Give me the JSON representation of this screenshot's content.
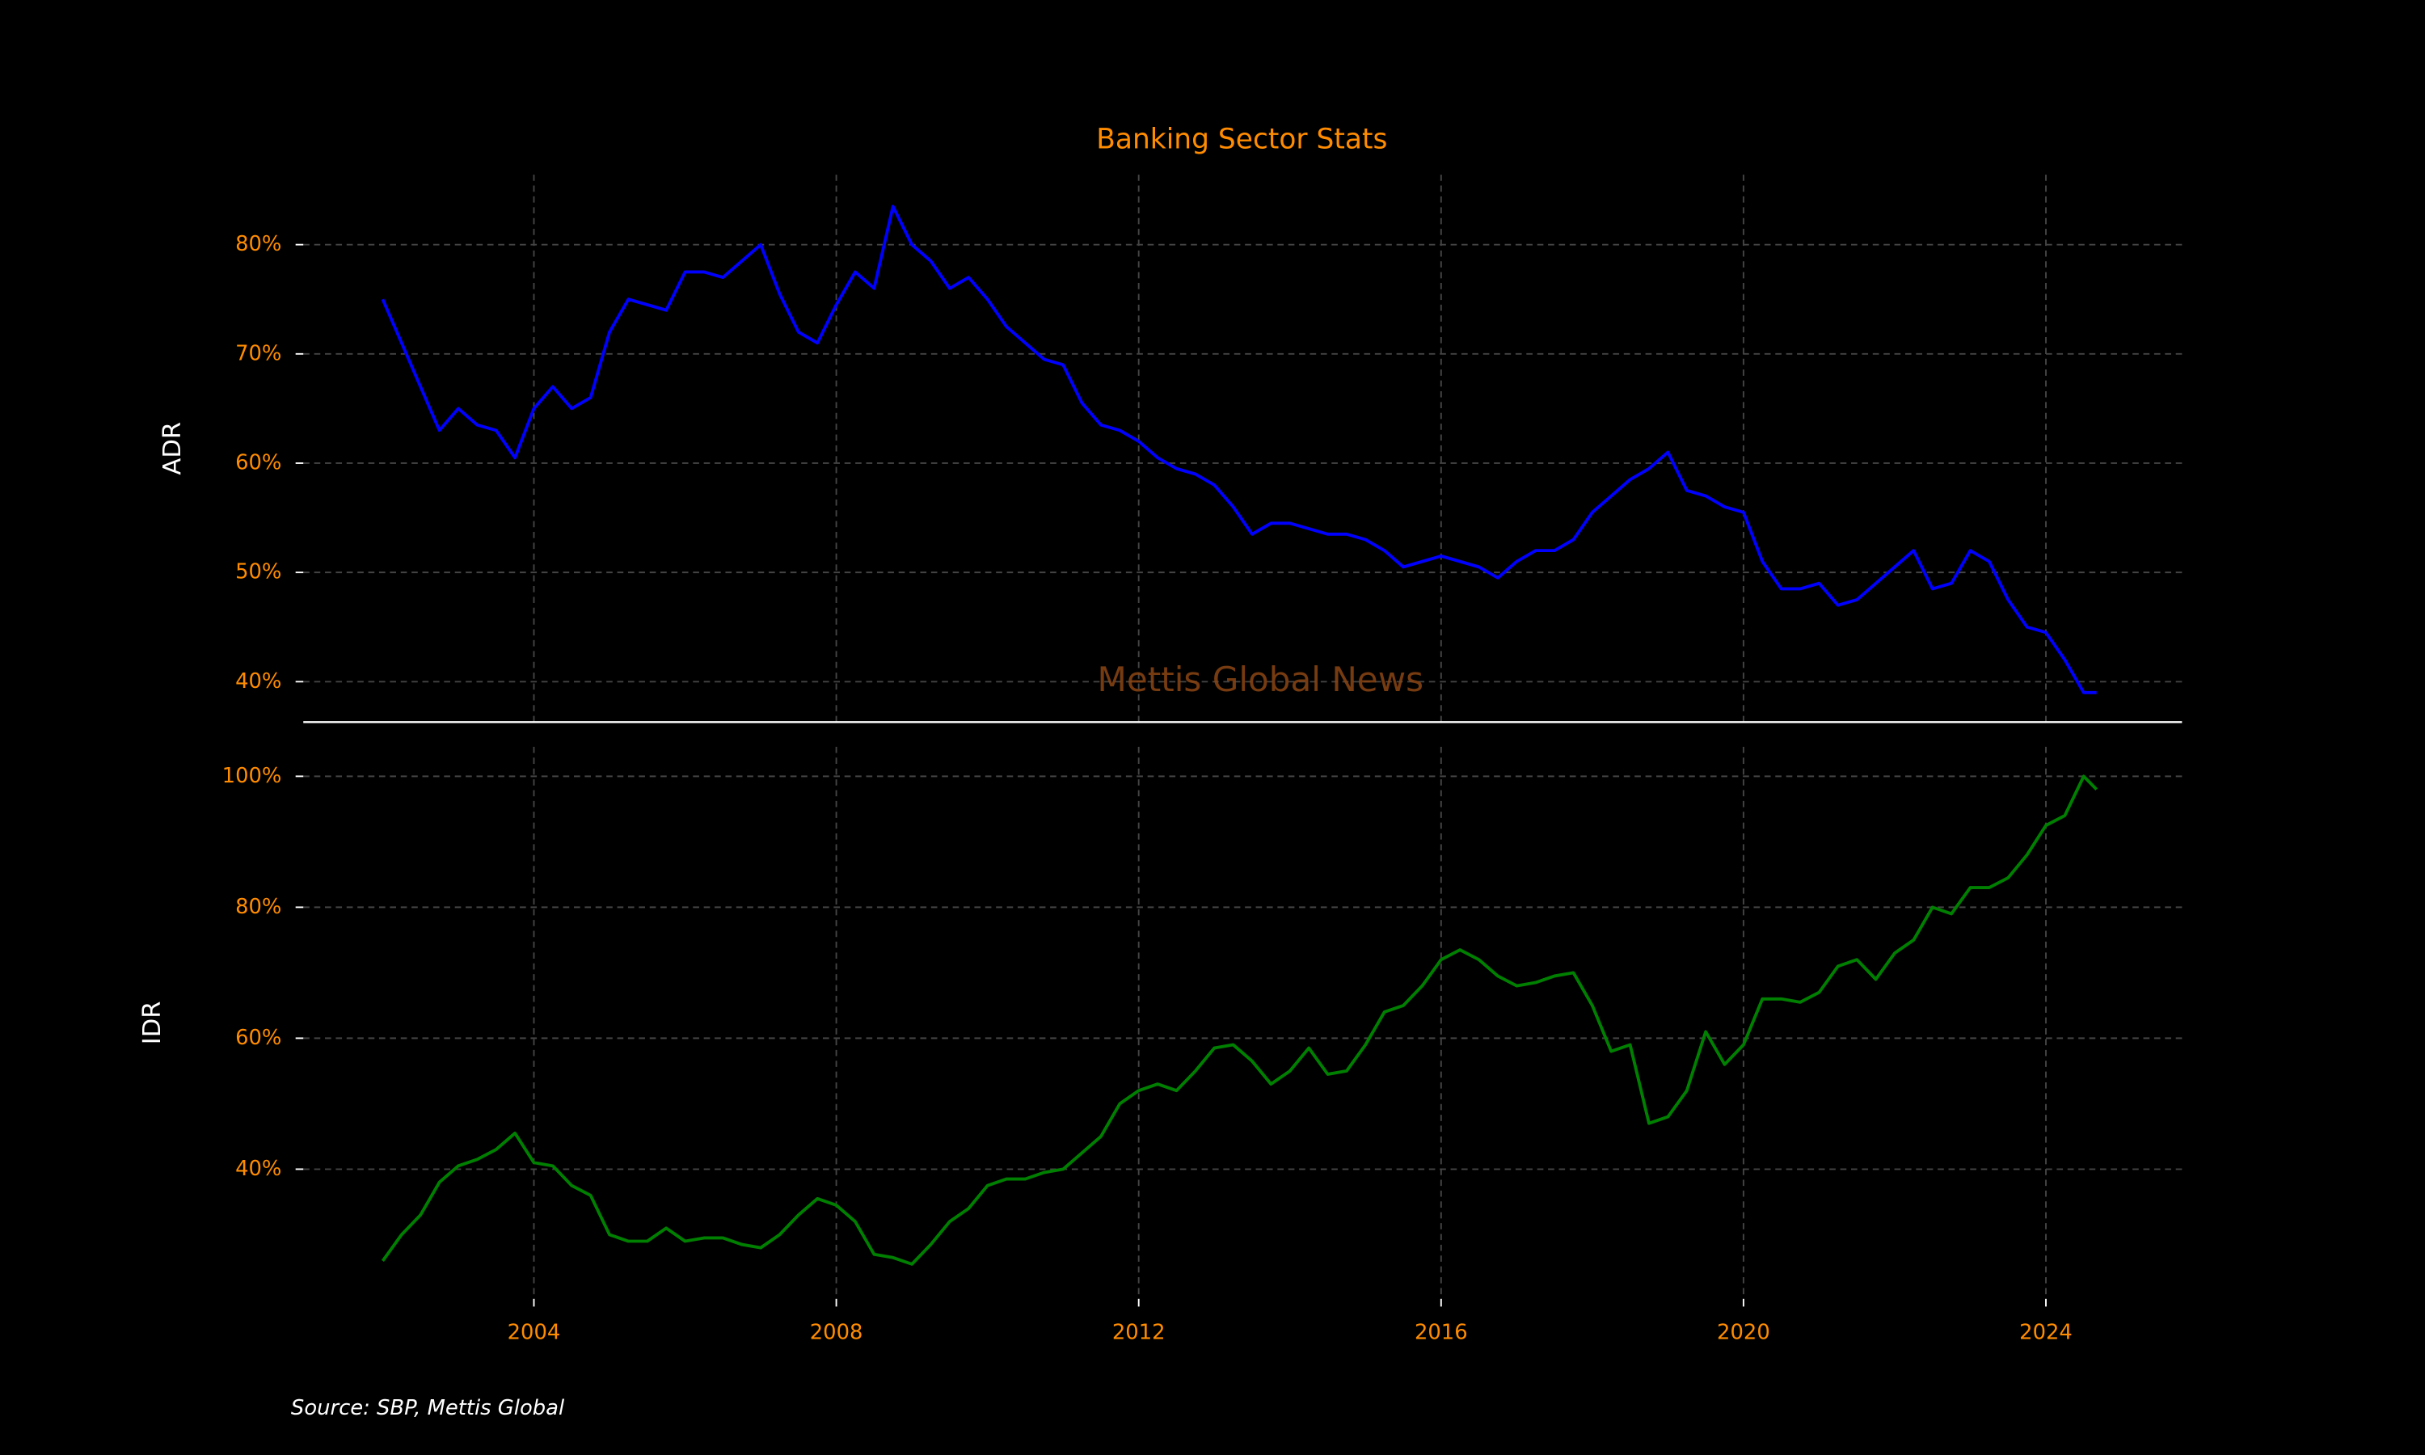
{
  "title": "Banking Sector Stats",
  "watermark": "Mettis Global News",
  "source": "Source: SBP, Mettis Global",
  "chart_data": [
    {
      "type": "line",
      "ylabel": "ADR",
      "x": [
        2002.0,
        2002.25,
        2002.5,
        2002.75,
        2003.0,
        2003.25,
        2003.5,
        2003.75,
        2004.0,
        2004.25,
        2004.5,
        2004.75,
        2005.0,
        2005.25,
        2005.5,
        2005.75,
        2006.0,
        2006.25,
        2006.5,
        2006.75,
        2007.0,
        2007.25,
        2007.5,
        2007.75,
        2008.0,
        2008.25,
        2008.5,
        2008.75,
        2009.0,
        2009.25,
        2009.5,
        2009.75,
        2010.0,
        2010.25,
        2010.5,
        2010.75,
        2011.0,
        2011.25,
        2011.5,
        2011.75,
        2012.0,
        2012.25,
        2012.5,
        2012.75,
        2013.0,
        2013.25,
        2013.5,
        2013.75,
        2014.0,
        2014.25,
        2014.5,
        2014.75,
        2015.0,
        2015.25,
        2015.5,
        2015.75,
        2016.0,
        2016.25,
        2016.5,
        2016.75,
        2017.0,
        2017.25,
        2017.5,
        2017.75,
        2018.0,
        2018.25,
        2018.5,
        2018.75,
        2019.0,
        2019.25,
        2019.5,
        2019.75,
        2020.0,
        2020.25,
        2020.5,
        2020.75,
        2021.0,
        2021.25,
        2021.5,
        2021.75,
        2022.0,
        2022.25,
        2022.5,
        2022.75,
        2023.0,
        2023.25,
        2023.5,
        2023.75,
        2024.0,
        2024.25,
        2024.5,
        2024.67
      ],
      "series": [
        {
          "name": "ADR",
          "color": "#0000ff",
          "values": [
            75,
            71,
            67,
            63,
            65,
            63.5,
            63,
            60.5,
            65,
            67,
            65,
            66,
            72,
            75,
            74.5,
            74,
            77.5,
            77.5,
            77,
            78.5,
            80,
            75.5,
            72,
            71,
            74.5,
            77.5,
            76,
            83.5,
            80,
            78.5,
            76,
            77,
            75,
            72.5,
            71,
            69.5,
            69,
            65.5,
            63.5,
            63,
            62,
            60.5,
            59.5,
            59,
            58,
            56,
            53.5,
            54.5,
            54.5,
            54,
            53.5,
            53.5,
            53,
            52,
            50.5,
            51,
            51.5,
            51,
            50.5,
            49.5,
            51,
            52,
            52,
            53,
            55.5,
            57,
            58.5,
            59.5,
            61,
            57.5,
            57,
            56,
            55.5,
            51,
            48.5,
            48.5,
            49,
            47,
            47.5,
            49,
            50.5,
            52,
            48.5,
            49,
            52,
            51,
            47.5,
            45,
            44.5,
            42,
            39,
            39
          ]
        }
      ],
      "xlim": [
        2000.95,
        2025.8
      ],
      "xticks": [
        2004,
        2008,
        2012,
        2016,
        2020,
        2024
      ],
      "ylim": [
        36.3,
        86.4
      ],
      "yticks": [
        {
          "value": 40,
          "label": "40%"
        },
        {
          "value": 50,
          "label": "50%"
        },
        {
          "value": 60,
          "label": "60%"
        },
        {
          "value": 70,
          "label": "70%"
        },
        {
          "value": 80,
          "label": "80%"
        }
      ],
      "grid": true
    },
    {
      "type": "line",
      "ylabel": "IDR",
      "x": [
        2002.0,
        2002.25,
        2002.5,
        2002.75,
        2003.0,
        2003.25,
        2003.5,
        2003.75,
        2004.0,
        2004.25,
        2004.5,
        2004.75,
        2005.0,
        2005.25,
        2005.5,
        2005.75,
        2006.0,
        2006.25,
        2006.5,
        2006.75,
        2007.0,
        2007.25,
        2007.5,
        2007.75,
        2008.0,
        2008.25,
        2008.5,
        2008.75,
        2009.0,
        2009.25,
        2009.5,
        2009.75,
        2010.0,
        2010.25,
        2010.5,
        2010.75,
        2011.0,
        2011.25,
        2011.5,
        2011.75,
        2012.0,
        2012.25,
        2012.5,
        2012.75,
        2013.0,
        2013.25,
        2013.5,
        2013.75,
        2014.0,
        2014.25,
        2014.5,
        2014.75,
        2015.0,
        2015.25,
        2015.5,
        2015.75,
        2016.0,
        2016.25,
        2016.5,
        2016.75,
        2017.0,
        2017.25,
        2017.5,
        2017.75,
        2018.0,
        2018.25,
        2018.5,
        2018.75,
        2019.0,
        2019.25,
        2019.5,
        2019.75,
        2020.0,
        2020.25,
        2020.5,
        2020.75,
        2021.0,
        2021.25,
        2021.5,
        2021.75,
        2022.0,
        2022.25,
        2022.5,
        2022.75,
        2023.0,
        2023.25,
        2023.5,
        2023.75,
        2024.0,
        2024.25,
        2024.5,
        2024.67
      ],
      "series": [
        {
          "name": "IDR",
          "color": "#008000",
          "values": [
            26,
            30,
            33,
            38,
            40.5,
            41.5,
            43,
            45.5,
            41,
            40.5,
            37.5,
            36,
            30,
            29,
            29,
            31,
            29,
            29.5,
            29.5,
            28.5,
            28,
            30,
            33,
            35.5,
            34.5,
            32,
            27,
            26.5,
            25.5,
            28.5,
            32,
            34,
            37.5,
            38.5,
            38.5,
            39.5,
            40,
            42.5,
            45,
            50,
            52,
            53,
            52,
            55,
            58.5,
            59,
            56.5,
            53,
            55,
            58.5,
            54.5,
            55,
            59,
            64,
            65,
            68,
            72,
            73.5,
            72,
            69.5,
            68,
            68.5,
            69.5,
            70,
            65,
            58,
            59,
            47,
            48,
            52,
            61,
            56,
            59,
            66,
            66,
            65.5,
            67,
            71,
            72,
            69,
            73,
            75,
            80,
            79,
            83,
            83,
            84.5,
            88,
            92.5,
            94,
            100,
            98
          ]
        }
      ],
      "xlim": [
        2000.95,
        2025.8
      ],
      "xticks": [
        2004,
        2008,
        2012,
        2016,
        2020,
        2024
      ],
      "ylim": [
        20.2,
        104.5
      ],
      "yticks": [
        {
          "value": 40,
          "label": "40%"
        },
        {
          "value": 60,
          "label": "60%"
        },
        {
          "value": 80,
          "label": "80%"
        },
        {
          "value": 100,
          "label": "100%"
        }
      ],
      "grid": true
    }
  ]
}
